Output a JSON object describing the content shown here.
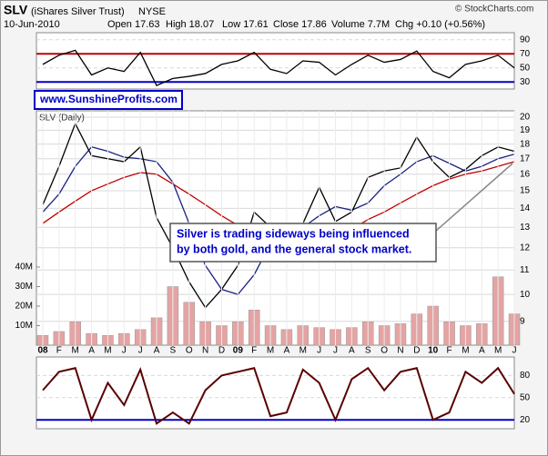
{
  "header": {
    "symbol": "SLV",
    "name": "(iShares Silver Trust)",
    "exchange": "NYSE",
    "date": "10-Jun-2010",
    "quote": [
      "Open 17.63",
      "High 18.07",
      "Low 17.61",
      "Close 17.86",
      "Volume 7.7M",
      "Chg +0.10 (+0.56%)"
    ],
    "credit": "© StockCharts.com",
    "website": "www.SunshineProfits.com",
    "callout": [
      "Silver is trading sideways being influenced",
      "by both gold, and the general stock market."
    ]
  },
  "chart_data": [
    {
      "type": "line",
      "ylim": [
        20,
        100
      ],
      "yticks": [
        30,
        50,
        70,
        90
      ],
      "hlines": [
        {
          "value": 70,
          "color": "#c00000"
        },
        {
          "value": 30,
          "color": "#0000c8"
        }
      ],
      "series": [
        {
          "color": "#000000",
          "values": [
            55,
            68,
            75,
            40,
            50,
            45,
            72,
            25,
            35,
            38,
            42,
            55,
            60,
            72,
            48,
            42,
            60,
            58,
            40,
            55,
            68,
            58,
            62,
            74,
            45,
            36,
            55,
            60,
            68,
            50
          ]
        }
      ]
    },
    {
      "type": "line",
      "title": "SLV (Daily)",
      "log": true,
      "ylim": [
        8.2,
        20.5
      ],
      "yticks": [
        9,
        10,
        11,
        12,
        13,
        14,
        15,
        16,
        17,
        18,
        19,
        20
      ],
      "categories": [
        "08",
        "F",
        "M",
        "A",
        "M",
        "J",
        "J",
        "A",
        "S",
        "O",
        "N",
        "D",
        "09",
        "F",
        "M",
        "A",
        "M",
        "J",
        "J",
        "A",
        "S",
        "O",
        "N",
        "D",
        "10",
        "F",
        "M",
        "A",
        "M",
        "J"
      ],
      "y2lim": [
        0,
        120000000
      ],
      "y2ticks": [
        {
          "value": 10000000,
          "label": "10M"
        },
        {
          "value": 20000000,
          "label": "20M"
        },
        {
          "value": 30000000,
          "label": "30M"
        },
        {
          "value": 40000000,
          "label": "40M"
        }
      ],
      "series": [
        {
          "type": "bar",
          "axis": "y2",
          "color": "#e4a4a4",
          "values": [
            5000000,
            7000000,
            12000000,
            6000000,
            5000000,
            6000000,
            8000000,
            14000000,
            30000000,
            22000000,
            12000000,
            10000000,
            12000000,
            18000000,
            10000000,
            8000000,
            10000000,
            9000000,
            8000000,
            9000000,
            12000000,
            10000000,
            11000000,
            16000000,
            20000000,
            12000000,
            10000000,
            11000000,
            35000000,
            16000000
          ]
        },
        {
          "color": "#c00000",
          "values": [
            13.2,
            13.8,
            14.4,
            15.0,
            15.4,
            15.8,
            16.1,
            16.0,
            15.4,
            14.8,
            14.2,
            13.6,
            13.1,
            12.7,
            12.4,
            12.2,
            12.1,
            12.2,
            12.5,
            12.9,
            13.4,
            13.8,
            14.3,
            14.8,
            15.3,
            15.7,
            16.0,
            16.2,
            16.5,
            16.8
          ]
        },
        {
          "color": "#1a237e",
          "values": [
            13.8,
            14.8,
            16.5,
            17.8,
            17.5,
            17.1,
            17.0,
            16.8,
            15.5,
            13.2,
            11.2,
            10.2,
            10.0,
            10.8,
            12.2,
            13.1,
            13.0,
            13.6,
            14.1,
            13.9,
            14.3,
            15.3,
            16.0,
            16.8,
            17.2,
            16.7,
            16.2,
            16.5,
            17.0,
            17.3
          ]
        },
        {
          "color": "#000000",
          "values": [
            14.2,
            16.5,
            19.5,
            17.2,
            17.0,
            16.8,
            17.8,
            13.5,
            12.0,
            10.5,
            9.5,
            10.2,
            11.2,
            13.8,
            13.0,
            12.6,
            13.2,
            15.2,
            13.3,
            13.8,
            15.8,
            16.2,
            16.4,
            18.5,
            16.8,
            15.8,
            16.3,
            17.2,
            17.8,
            17.5
          ]
        }
      ]
    },
    {
      "type": "line",
      "ylim": [
        8,
        105
      ],
      "yticks": [
        20,
        50,
        80
      ],
      "hlines": [
        {
          "value": 20,
          "color": "#0000c8"
        }
      ],
      "series": [
        {
          "color": "#5a0000",
          "values": [
            60,
            85,
            90,
            20,
            70,
            40,
            88,
            15,
            30,
            15,
            60,
            80,
            85,
            90,
            25,
            30,
            88,
            70,
            20,
            75,
            90,
            60,
            85,
            90,
            20,
            30,
            85,
            70,
            90,
            55
          ]
        }
      ]
    }
  ]
}
